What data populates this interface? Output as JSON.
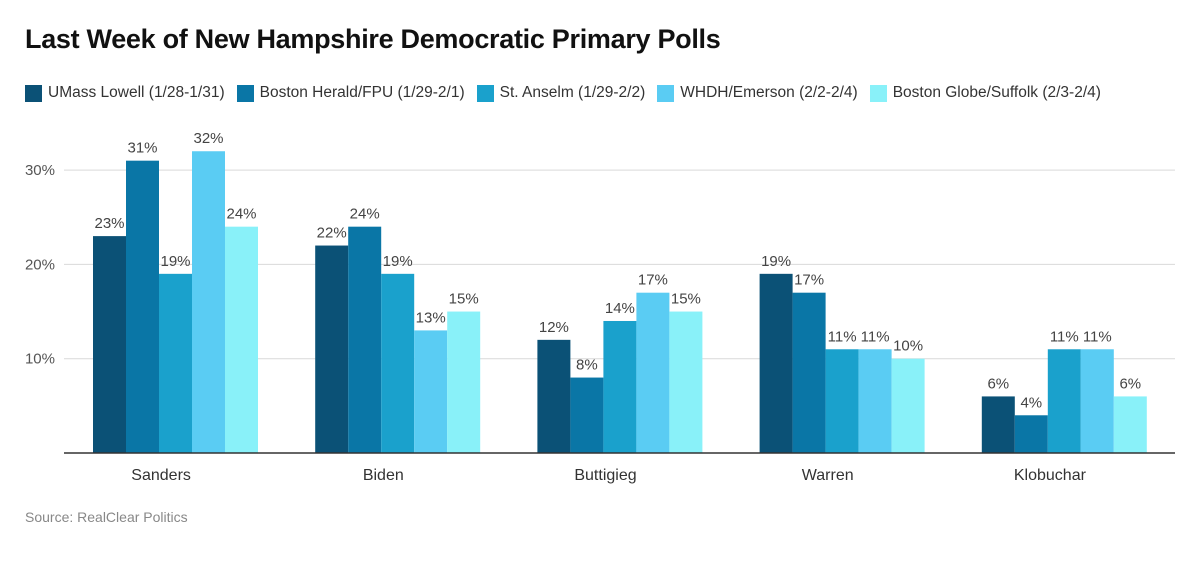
{
  "chart_data": {
    "type": "bar",
    "title": "Last Week of New Hampshire Democratic Primary Polls",
    "categories": [
      "Sanders",
      "Biden",
      "Buttigieg",
      "Warren",
      "Klobuchar"
    ],
    "series": [
      {
        "name": "UMass Lowell (1/28-1/31)",
        "color": "#0b5176",
        "values": [
          23,
          22,
          12,
          19,
          6
        ]
      },
      {
        "name": "Boston Herald/FPU (1/29-2/1)",
        "color": "#0a76a6",
        "values": [
          31,
          24,
          8,
          17,
          4
        ]
      },
      {
        "name": "St. Anselm (1/29-2/2)",
        "color": "#1aa1cc",
        "values": [
          19,
          19,
          14,
          11,
          11
        ]
      },
      {
        "name": "WHDH/Emerson (2/2-2/4)",
        "color": "#5accf3",
        "values": [
          32,
          13,
          17,
          11,
          11
        ]
      },
      {
        "name": "Boston Globe/Suffolk (2/3-2/4)",
        "color": "#89f1f9",
        "values": [
          24,
          15,
          15,
          10,
          6
        ]
      }
    ],
    "yticks": [
      10,
      20,
      30
    ],
    "ytick_labels": [
      "10%",
      "20%",
      "30%"
    ],
    "ylim": [
      0,
      35
    ],
    "value_suffix": "%",
    "xlabel": "",
    "ylabel": "",
    "grid": true,
    "legend_position": "top"
  },
  "source": "Source: RealClear Politics"
}
